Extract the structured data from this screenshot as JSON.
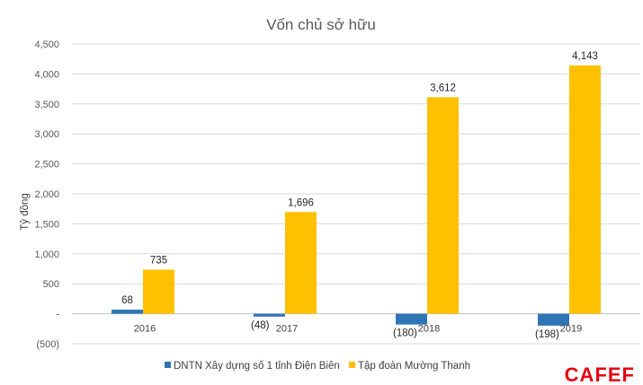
{
  "chart_data": {
    "type": "bar",
    "title": "Vốn chủ sở hữu",
    "ylabel": "Tỷ đồng",
    "xlabel": "",
    "categories": [
      "2016",
      "2017",
      "2018",
      "2019"
    ],
    "ylim": [
      -500,
      4500
    ],
    "yticks": [
      -500,
      0,
      500,
      1000,
      1500,
      2000,
      2500,
      3000,
      3500,
      4000,
      4500
    ],
    "ytick_labels": [
      "(500)",
      "-",
      "500",
      "1,000",
      "1,500",
      "2,000",
      "2,500",
      "3,000",
      "3,500",
      "4,000",
      "4,500"
    ],
    "series": [
      {
        "name": "DNTN Xây dựng số 1 tỉnh Điện Biên",
        "color": "#2e75b6",
        "values": [
          68,
          -48,
          -180,
          -198
        ],
        "labels": [
          "68",
          "(48)",
          "(180)",
          "(198)"
        ]
      },
      {
        "name": "Tập đoàn Mường Thanh",
        "color": "#ffc000",
        "values": [
          735,
          1696,
          3612,
          4143
        ],
        "labels": [
          "735",
          "1,696",
          "3,612",
          "4,143"
        ]
      }
    ],
    "grid": true,
    "legend_position": "bottom"
  },
  "watermark": {
    "text": "CAFEF",
    "color": "#e60012"
  }
}
